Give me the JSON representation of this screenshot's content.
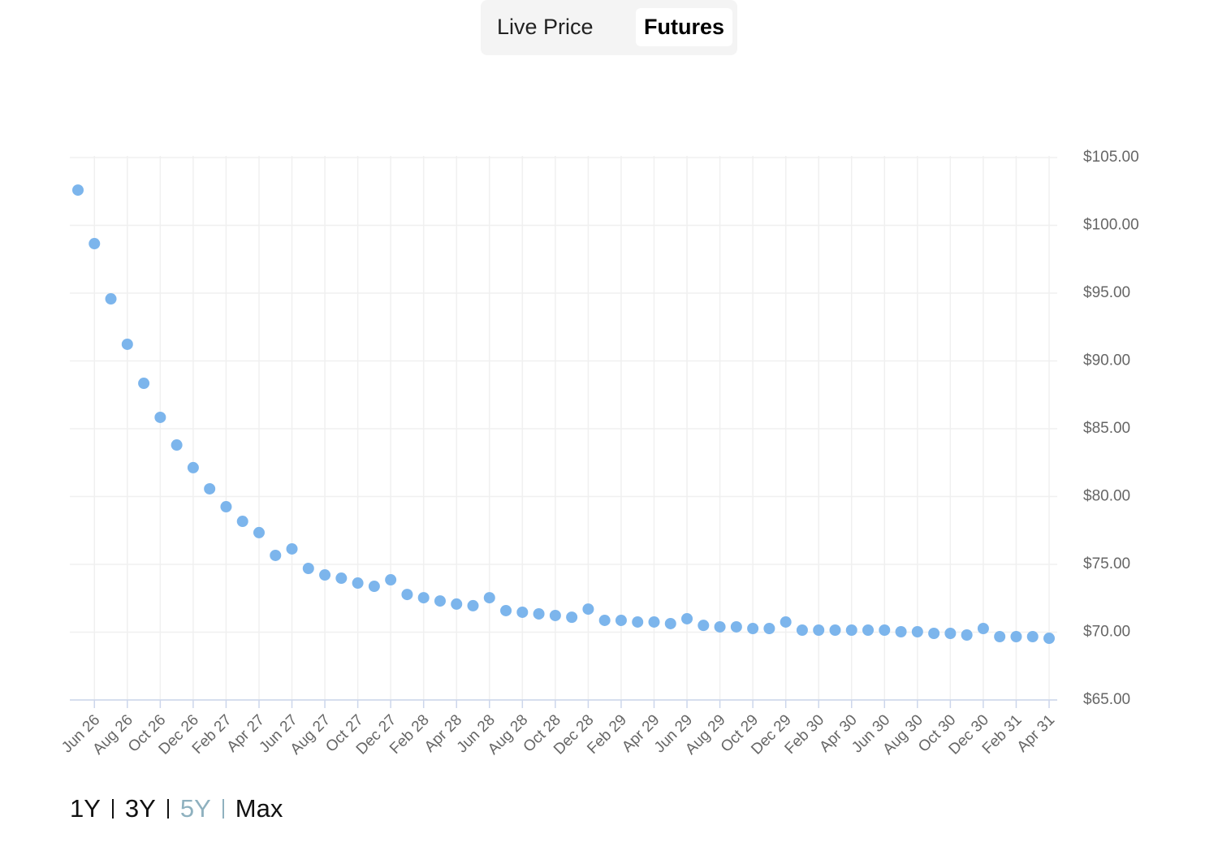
{
  "toggle": {
    "options": [
      "Live Price",
      "Futures"
    ],
    "active": 1
  },
  "ranges": {
    "options": [
      "1Y",
      "3Y",
      "5Y",
      "Max"
    ],
    "active": 2
  },
  "chart_data": {
    "type": "scatter",
    "color": "#7cb5ec",
    "grid": true,
    "categories": [
      null,
      "Jun 26",
      null,
      "Aug 26",
      null,
      "Oct 26",
      null,
      "Dec 26",
      null,
      "Feb 27",
      null,
      "Apr 27",
      null,
      "Jun 27",
      null,
      "Aug 27",
      null,
      "Oct 27",
      null,
      "Dec 27",
      null,
      "Feb 28",
      null,
      "Apr 28",
      null,
      "Jun 28",
      null,
      "Aug 28",
      null,
      "Oct 28",
      null,
      "Dec 28",
      null,
      "Feb 29",
      null,
      "Apr 29",
      null,
      "Jun 29",
      null,
      "Aug 29",
      null,
      "Oct 29",
      null,
      "Dec 29",
      null,
      "Feb 30",
      null,
      "Apr 30",
      null,
      "Jun 30",
      null,
      "Aug 30",
      null,
      "Oct 30",
      null,
      "Dec 30",
      null,
      "Feb 31",
      null,
      "Apr 31"
    ],
    "values": [
      102.6,
      98.65,
      94.58,
      91.23,
      88.35,
      85.84,
      83.8,
      82.13,
      80.57,
      79.25,
      78.17,
      77.34,
      75.66,
      76.14,
      74.7,
      74.22,
      73.98,
      73.62,
      73.38,
      73.86,
      72.78,
      72.54,
      72.3,
      72.07,
      71.95,
      72.54,
      71.59,
      71.47,
      71.35,
      71.23,
      71.1,
      71.7,
      70.87,
      70.87,
      70.75,
      70.75,
      70.63,
      70.99,
      70.5,
      70.39,
      70.39,
      70.27,
      70.27,
      70.75,
      70.15,
      70.15,
      70.15,
      70.15,
      70.15,
      70.15,
      70.03,
      70.03,
      69.91,
      69.91,
      69.79,
      70.27,
      69.67,
      69.67,
      69.67,
      69.55
    ],
    "ylim": [
      65,
      105
    ],
    "yticks": [
      {
        "value": 65,
        "label": "$65.00"
      },
      {
        "value": 70,
        "label": "$70.00"
      },
      {
        "value": 75,
        "label": "$75.00"
      },
      {
        "value": 80,
        "label": "$80.00"
      },
      {
        "value": 85,
        "label": "$85.00"
      },
      {
        "value": 90,
        "label": "$90.00"
      },
      {
        "value": 95,
        "label": "$95.00"
      },
      {
        "value": 100,
        "label": "$100.00"
      },
      {
        "value": 105,
        "label": "$105.00"
      }
    ]
  }
}
